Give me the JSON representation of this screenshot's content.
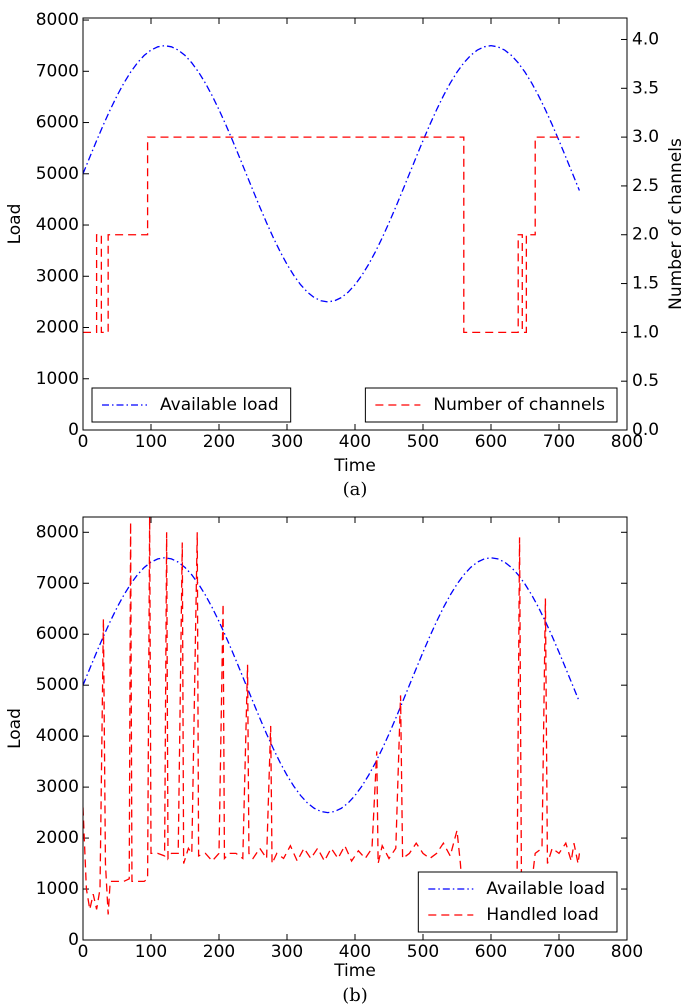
{
  "chart_data": [
    {
      "type": "line",
      "caption": "(a)",
      "xlabel": "Time",
      "ylabel": "Load",
      "y2label": "Number of channels",
      "xlim": [
        0,
        800
      ],
      "xticks": [
        0,
        100,
        200,
        300,
        400,
        500,
        600,
        700,
        800
      ],
      "ylim": [
        0,
        8040
      ],
      "yticks": [
        0,
        1000,
        2000,
        3000,
        4000,
        5000,
        6000,
        7000,
        8000
      ],
      "y2lim": [
        0,
        4.22
      ],
      "y2ticks": [
        {
          "value": 0,
          "label": "0.0"
        },
        0.5,
        {
          "value": 1,
          "label": "1.0"
        },
        1.5,
        {
          "value": 2,
          "label": "2.0"
        },
        2.5,
        {
          "value": 3,
          "label": "3.0"
        },
        3.5,
        {
          "value": 4,
          "label": "4.0"
        }
      ],
      "series": [
        {
          "name": "Available load",
          "color": "#0000ff",
          "dash": "-.",
          "legend": "lower left",
          "x": [
            0,
            10,
            20,
            30,
            40,
            50,
            60,
            70,
            80,
            90,
            100,
            110,
            120,
            130,
            140,
            150,
            160,
            170,
            180,
            190,
            200,
            210,
            220,
            230,
            240,
            250,
            260,
            270,
            280,
            290,
            300,
            310,
            320,
            330,
            340,
            350,
            360,
            370,
            380,
            390,
            400,
            410,
            420,
            430,
            440,
            450,
            460,
            470,
            480,
            490,
            500,
            510,
            520,
            530,
            540,
            550,
            560,
            570,
            580,
            590,
            600,
            610,
            620,
            630,
            640,
            650,
            660,
            670,
            680,
            690,
            700,
            710,
            720,
            730
          ],
          "values": [
            5000,
            5326,
            5647,
            5957,
            6250,
            6522,
            6768,
            6983,
            7165,
            7310,
            7415,
            7478,
            7500,
            7478,
            7415,
            7310,
            7165,
            6983,
            6768,
            6522,
            6250,
            5957,
            5647,
            5326,
            5000,
            4674,
            4353,
            4043,
            3750,
            3478,
            3232,
            3017,
            2835,
            2690,
            2585,
            2522,
            2500,
            2522,
            2585,
            2690,
            2835,
            3017,
            3232,
            3478,
            3750,
            4043,
            4353,
            4674,
            5000,
            5326,
            5647,
            5957,
            6250,
            6522,
            6768,
            6983,
            7165,
            7310,
            7415,
            7478,
            7500,
            7478,
            7415,
            7310,
            7165,
            6983,
            6768,
            6522,
            6250,
            5957,
            5647,
            5326,
            5000,
            4674
          ]
        },
        {
          "name": "Number of channels",
          "color": "#ff0000",
          "dash": "--",
          "axis": "y2",
          "legend": "lower right",
          "x": [
            0,
            20,
            20,
            27,
            27,
            37,
            37,
            95,
            95,
            560,
            560,
            640,
            640,
            646,
            646,
            652,
            652,
            665,
            665,
            730
          ],
          "values": [
            1,
            1,
            2,
            2,
            1,
            1,
            2,
            2,
            3,
            3,
            1,
            1,
            2,
            2,
            1,
            1,
            2,
            2,
            3,
            3
          ]
        }
      ]
    },
    {
      "type": "line",
      "caption": "(b)",
      "xlabel": "Time",
      "ylabel": "Load",
      "xlim": [
        0,
        800
      ],
      "xticks": [
        0,
        100,
        200,
        300,
        400,
        500,
        600,
        700,
        800
      ],
      "ylim": [
        0,
        8300
      ],
      "yticks": [
        0,
        1000,
        2000,
        3000,
        4000,
        5000,
        6000,
        7000,
        8000
      ],
      "series": [
        {
          "name": "Available load",
          "color": "#0000ff",
          "dash": "-.",
          "legend": "lower right",
          "x": [
            0,
            10,
            20,
            30,
            40,
            50,
            60,
            70,
            80,
            90,
            100,
            110,
            120,
            130,
            140,
            150,
            160,
            170,
            180,
            190,
            200,
            210,
            220,
            230,
            240,
            250,
            260,
            270,
            280,
            290,
            300,
            310,
            320,
            330,
            340,
            350,
            360,
            370,
            380,
            390,
            400,
            410,
            420,
            430,
            440,
            450,
            460,
            470,
            480,
            490,
            500,
            510,
            520,
            530,
            540,
            550,
            560,
            570,
            580,
            590,
            600,
            610,
            620,
            630,
            640,
            650,
            660,
            670,
            680,
            690,
            700,
            710,
            720,
            730
          ],
          "values": [
            5000,
            5326,
            5647,
            5957,
            6250,
            6522,
            6768,
            6983,
            7165,
            7310,
            7415,
            7478,
            7500,
            7478,
            7415,
            7310,
            7165,
            6983,
            6768,
            6522,
            6250,
            5957,
            5647,
            5326,
            5000,
            4674,
            4353,
            4043,
            3750,
            3478,
            3232,
            3017,
            2835,
            2690,
            2585,
            2522,
            2500,
            2522,
            2585,
            2690,
            2835,
            3017,
            3232,
            3478,
            3750,
            4043,
            4353,
            4674,
            5000,
            5326,
            5647,
            5957,
            6250,
            6522,
            6768,
            6983,
            7165,
            7310,
            7415,
            7478,
            7500,
            7478,
            7415,
            7310,
            7165,
            6983,
            6768,
            6522,
            6250,
            5957,
            5647,
            5326,
            5000,
            4674
          ]
        },
        {
          "name": "Handled load",
          "color": "#ff0000",
          "dash": "--",
          "legend": "lower right",
          "x": [
            0,
            5,
            10,
            15,
            20,
            25,
            30,
            33,
            37,
            40,
            50,
            60,
            68,
            70,
            72,
            80,
            90,
            95,
            98,
            100,
            110,
            120,
            123,
            125,
            130,
            140,
            146,
            148,
            155,
            160,
            168,
            170,
            180,
            190,
            200,
            206,
            208,
            215,
            225,
            235,
            242,
            244,
            250,
            260,
            270,
            276,
            278,
            285,
            295,
            305,
            315,
            325,
            335,
            345,
            355,
            365,
            375,
            385,
            395,
            405,
            415,
            425,
            432,
            434,
            440,
            450,
            460,
            467,
            470,
            480,
            490,
            500,
            510,
            520,
            530,
            540,
            550,
            555,
            560,
            580,
            600,
            620,
            638,
            642,
            645,
            655,
            665,
            675,
            680,
            683,
            690,
            700,
            710,
            718,
            722,
            728,
            730
          ],
          "values": [
            2600,
            1000,
            600,
            900,
            600,
            1000,
            6300,
            1500,
            500,
            1150,
            1150,
            1150,
            1200,
            8200,
            1150,
            1150,
            1150,
            1200,
            8300,
            1700,
            1700,
            1650,
            8000,
            1600,
            1700,
            1700,
            7800,
            1500,
            1800,
            1700,
            8000,
            1650,
            1700,
            1550,
            1700,
            6600,
            1600,
            1700,
            1700,
            1600,
            5400,
            1700,
            1600,
            1800,
            1600,
            4200,
            1500,
            1700,
            1600,
            1850,
            1550,
            1800,
            1600,
            1800,
            1550,
            1800,
            1600,
            1850,
            1550,
            1750,
            1600,
            1800,
            3700,
            1500,
            1850,
            1600,
            1800,
            4800,
            1600,
            1700,
            1900,
            1700,
            1600,
            1700,
            1900,
            1650,
            2150,
            1500,
            600,
            600,
            600,
            650,
            600,
            7900,
            600,
            550,
            1700,
            1800,
            6700,
            1500,
            1800,
            1700,
            1900,
            1550,
            1900,
            1500,
            1700
          ]
        }
      ]
    }
  ]
}
